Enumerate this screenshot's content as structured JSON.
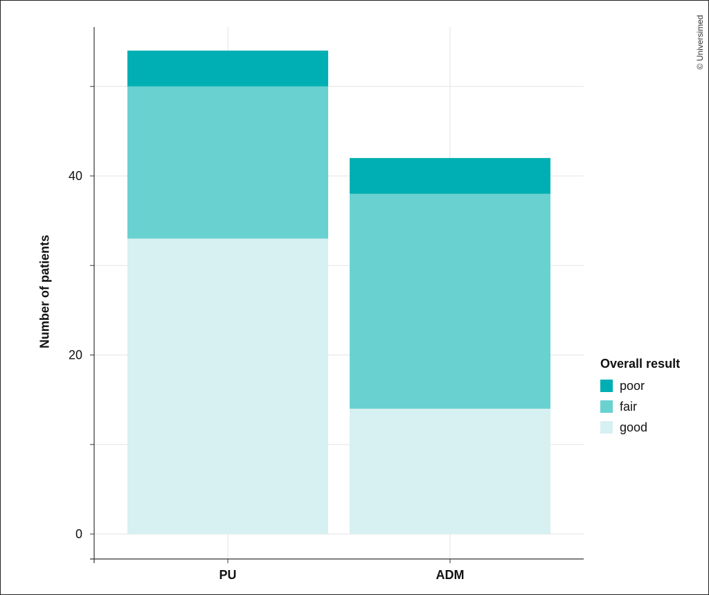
{
  "copyright": "© Universimed",
  "chart_data": {
    "type": "bar",
    "stacked": true,
    "title": "",
    "xlabel": "",
    "ylabel": "Number of patients",
    "categories": [
      "PU",
      "ADM"
    ],
    "ylim": [
      -2.5,
      57
    ],
    "yticks": [
      0,
      20,
      40
    ],
    "grid": true,
    "legend_title": "Overall result",
    "legend_position": "right",
    "series": [
      {
        "name": "good",
        "color": "#d7f0f1",
        "values": [
          33,
          14
        ]
      },
      {
        "name": "fair",
        "color": "#6ad1d1",
        "values": [
          17,
          24
        ]
      },
      {
        "name": "poor",
        "color": "#00afb3",
        "values": [
          4,
          4
        ]
      }
    ]
  }
}
